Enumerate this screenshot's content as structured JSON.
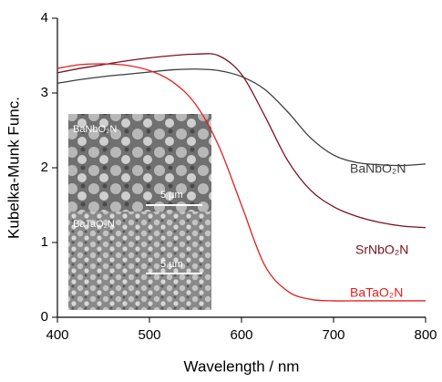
{
  "chart_data": {
    "type": "line",
    "xlabel": "Wavelength / nm",
    "ylabel": "Kubelka-Munk Func.",
    "x": [
      400,
      425,
      450,
      475,
      500,
      525,
      550,
      575,
      600,
      625,
      650,
      675,
      700,
      725,
      750,
      775,
      800
    ],
    "series": [
      {
        "name": "BaNbO₂N",
        "color": "#3c3c3c",
        "values": [
          3.13,
          3.18,
          3.22,
          3.25,
          3.28,
          3.31,
          3.32,
          3.3,
          3.22,
          3.05,
          2.75,
          2.4,
          2.17,
          2.07,
          2.04,
          2.03,
          2.05
        ]
      },
      {
        "name": "SrNbO₂N",
        "color": "#7a1020",
        "values": [
          3.27,
          3.33,
          3.38,
          3.43,
          3.47,
          3.5,
          3.52,
          3.5,
          3.25,
          2.7,
          2.1,
          1.7,
          1.48,
          1.35,
          1.27,
          1.22,
          1.2
        ]
      },
      {
        "name": "BaTaO₂N",
        "color": "#e02020",
        "values": [
          3.33,
          3.38,
          3.39,
          3.37,
          3.3,
          3.15,
          2.85,
          2.3,
          1.5,
          0.7,
          0.35,
          0.24,
          0.22,
          0.22,
          0.22,
          0.22,
          0.22
        ]
      }
    ],
    "xlim": [
      400,
      800
    ],
    "xticks": [
      400,
      500,
      600,
      700,
      800
    ],
    "ylim": [
      0,
      4
    ],
    "yticks": [
      0,
      1,
      2,
      3,
      4
    ],
    "annotations": [
      {
        "text": "BaNbO₂N"
      },
      {
        "text": "5 µm"
      },
      {
        "text": "BaTaO₂N"
      },
      {
        "text": "5 µm"
      }
    ]
  }
}
